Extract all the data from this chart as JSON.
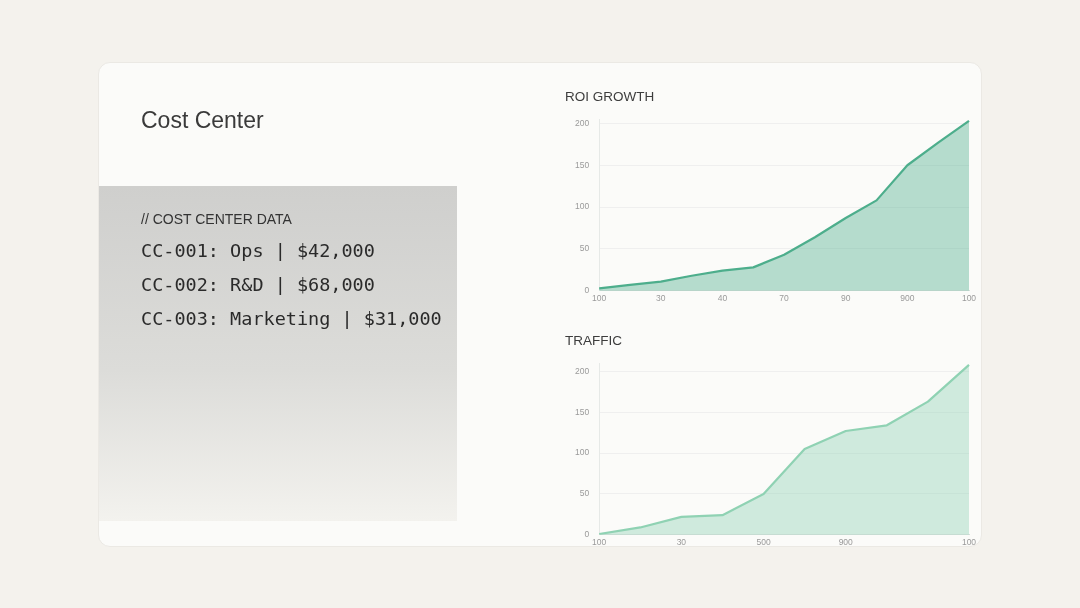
{
  "chart_data": [
    {
      "type": "other",
      "title": "Cost Center",
      "subtitle": "// COST CENTER DATA",
      "annotations": [
        "CC-001: Ops | $42,000",
        "CC-002: R&D | $68,000",
        "CC-003: Marketing | $31,000"
      ]
    },
    {
      "type": "area",
      "title": "ROI GROWTH",
      "categories": [
        "100",
        null,
        "30",
        null,
        "40",
        null,
        "70",
        null,
        "90",
        null,
        "900",
        null,
        "100"
      ],
      "series": [
        {
          "color": "#4dae8c",
          "values": [
            3,
            7,
            11,
            18,
            24,
            28,
            43,
            64,
            87,
            108,
            150,
            177,
            203
          ]
        }
      ],
      "ylim": [
        0,
        205
      ],
      "yticks": [
        0,
        50,
        100,
        150,
        200
      ],
      "grid": "y",
      "legend": false
    },
    {
      "type": "area",
      "title": "TRAFFIC",
      "categories": [
        "100",
        null,
        "30",
        null,
        "500",
        null,
        "900",
        null,
        null,
        "100"
      ],
      "series": [
        {
          "color": "#8fd2b3",
          "values": [
            1,
            9,
            22,
            24,
            50,
            105,
            127,
            134,
            163,
            208
          ]
        }
      ],
      "ylim": [
        0,
        210
      ],
      "yticks": [
        0,
        50,
        100,
        150,
        200
      ],
      "grid": "y",
      "legend": false
    }
  ]
}
